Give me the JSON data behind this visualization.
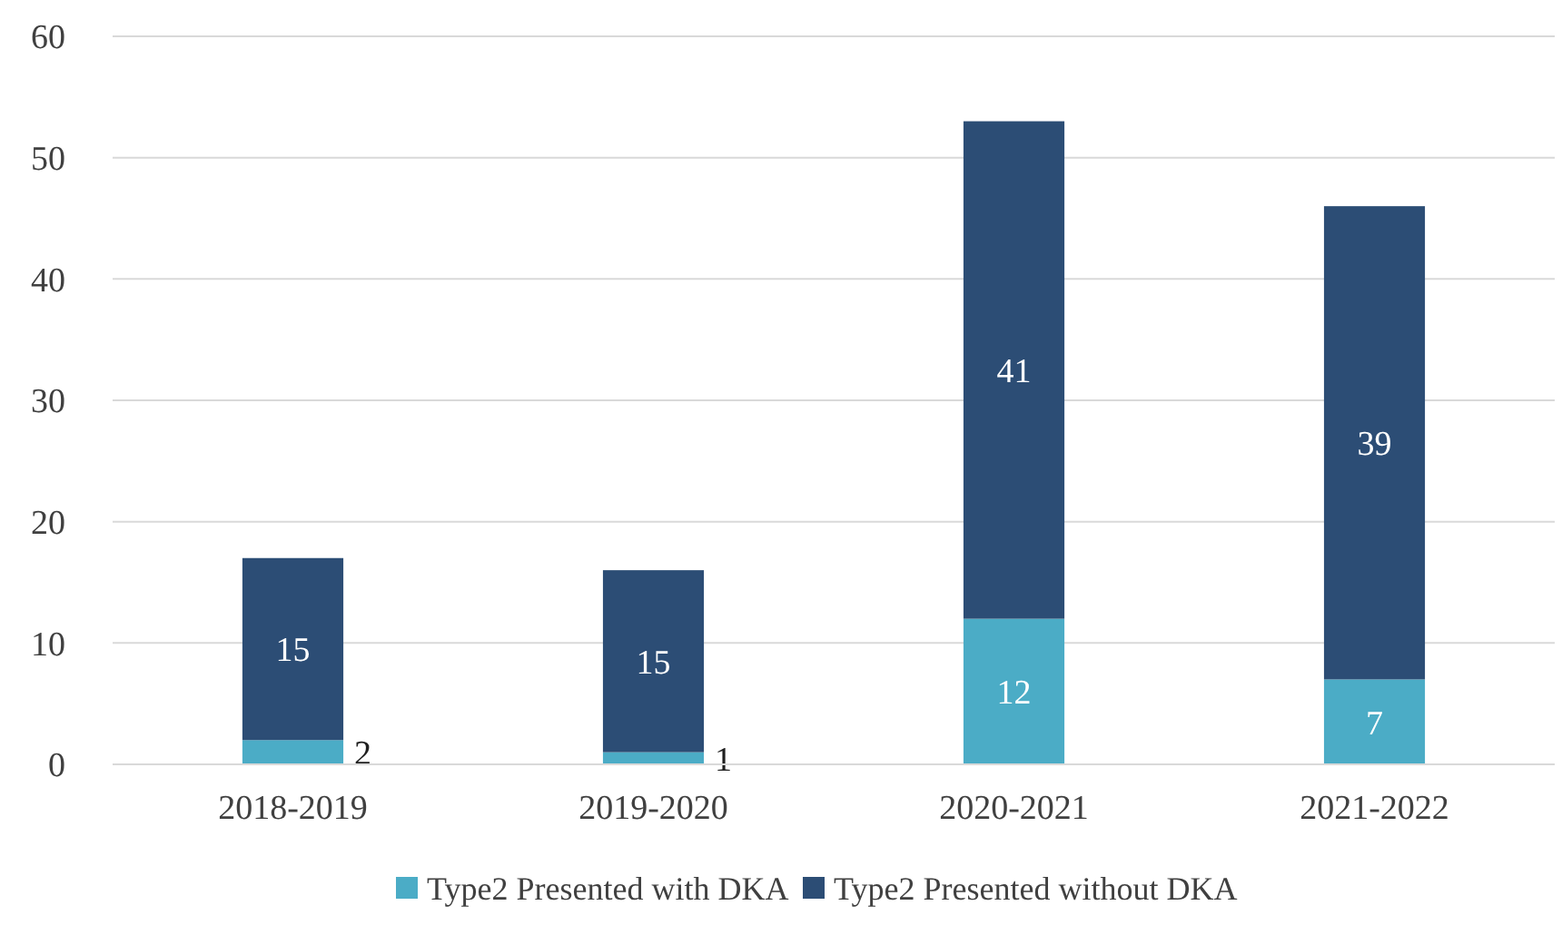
{
  "chart_data": {
    "type": "bar",
    "stacked": true,
    "categories": [
      "2018-2019",
      "2019-2020",
      "2020-2021",
      "2021-2022"
    ],
    "series": [
      {
        "name": "Type2 Presented with DKA",
        "color": "#4bacc6",
        "values": [
          2,
          1,
          12,
          7
        ]
      },
      {
        "name": "Type2 Presented without DKA",
        "color": "#2c4d75",
        "values": [
          15,
          15,
          41,
          39
        ]
      }
    ],
    "ylim": [
      0,
      60
    ],
    "yticks": [
      0,
      10,
      20,
      30,
      40,
      50,
      60
    ],
    "grid": "y",
    "legend": "bottom",
    "data_labels": true
  }
}
